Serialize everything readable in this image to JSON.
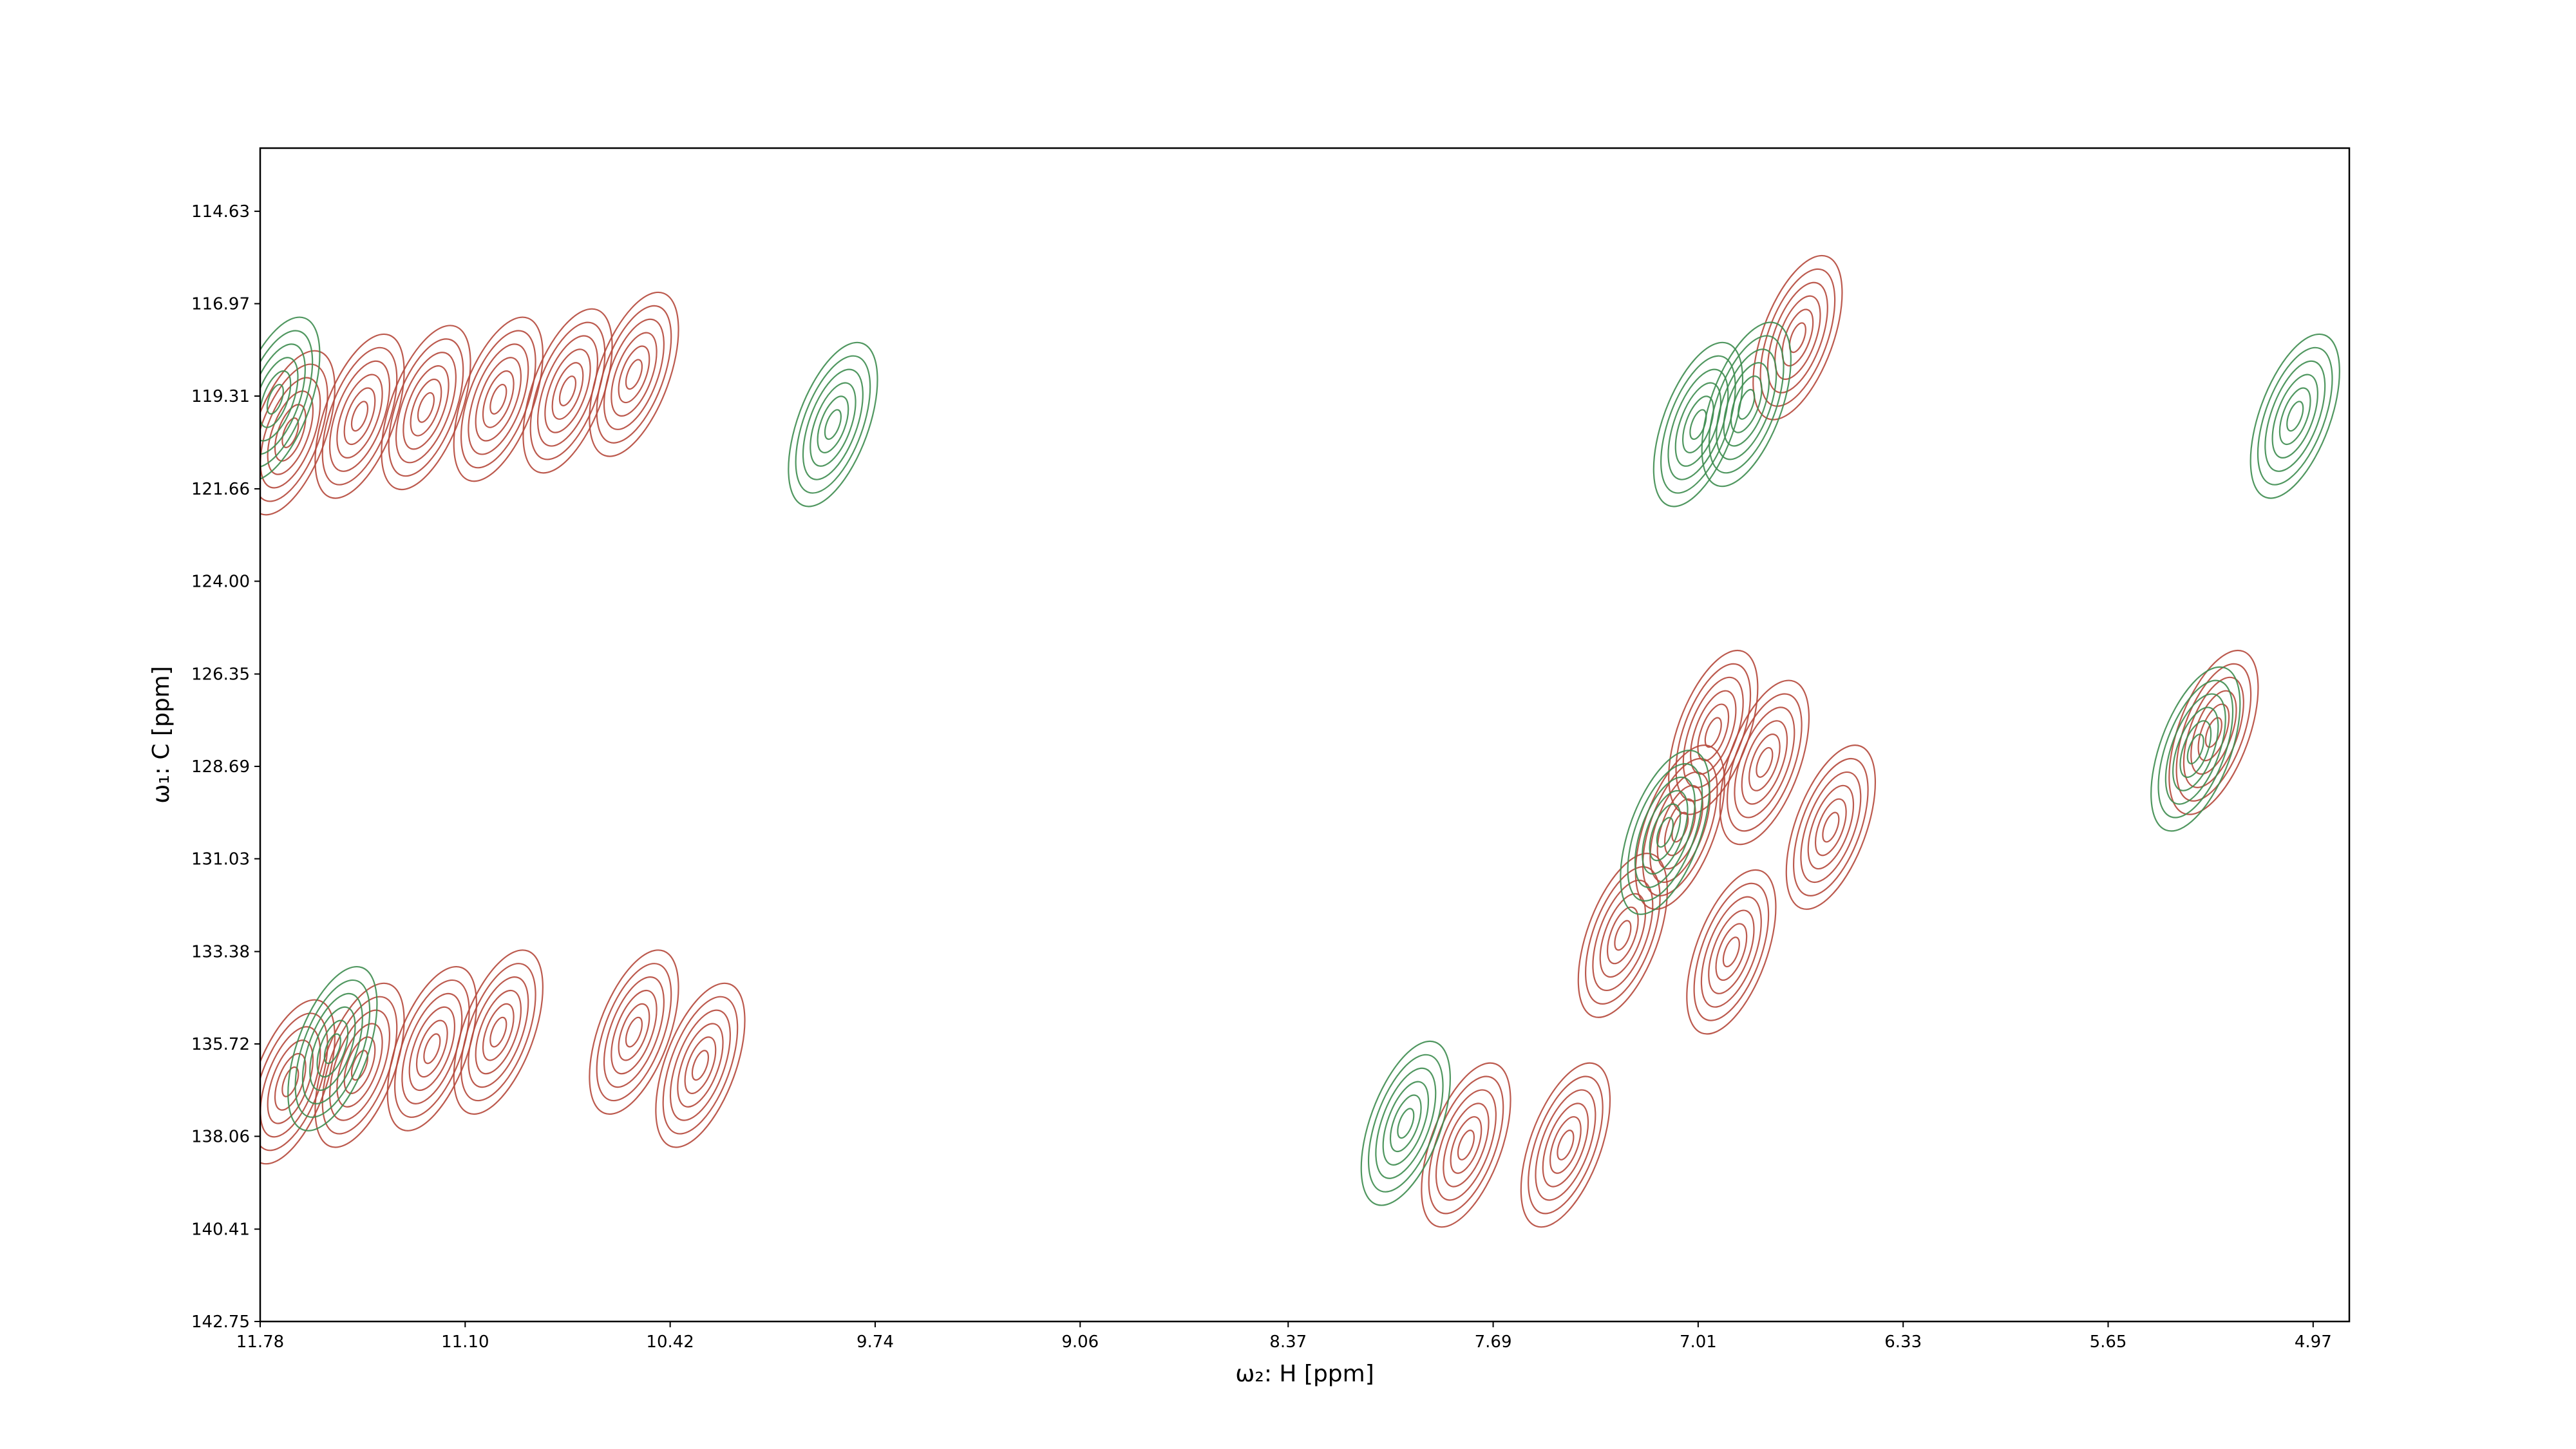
{
  "chart_data": {
    "type": "contour",
    "xlabel": "ω₂: H [ppm]",
    "ylabel": "ω₁: C [ppm]",
    "xlim": [
      11.78,
      4.85
    ],
    "ylim": [
      142.75,
      113.03
    ],
    "xticks": [
      11.78,
      {
        "value": 11.1,
        "label": "11.10"
      },
      10.42,
      9.74,
      9.06,
      8.37,
      7.69,
      7.01,
      6.33,
      5.65,
      4.97
    ],
    "yticks": [
      114.63,
      116.97,
      119.31,
      121.66,
      {
        "value": 124,
        "label": "124.00"
      },
      126.35,
      128.69,
      131.03,
      133.38,
      135.72,
      138.06,
      140.41,
      142.75
    ],
    "series": [
      {
        "color": "#b5483b",
        "x": [
          11.68,
          11.45,
          11.23,
          10.99,
          10.76,
          10.54,
          11.68,
          11.45,
          11.21,
          10.99,
          10.54,
          10.32,
          6.68,
          6.96,
          6.79,
          7.07,
          6.57,
          7.26,
          6.9,
          7.78,
          7.45,
          5.3
        ],
        "y": [
          120.24,
          119.82,
          119.6,
          119.39,
          119.18,
          118.76,
          136.68,
          136.26,
          135.84,
          135.42,
          135.42,
          136.26,
          117.83,
          127.83,
          128.59,
          130.23,
          130.23,
          132.97,
          133.39,
          138.28,
          138.28,
          127.83
        ]
      },
      {
        "color": "#3d8c4f",
        "x": [
          11.73,
          11.54,
          7.01,
          6.85,
          7.98,
          5.03,
          5.36,
          7.12,
          9.88
        ],
        "y": [
          119.39,
          135.84,
          120.03,
          119.52,
          137.73,
          119.82,
          128.25,
          130.36,
          120.03
        ]
      }
    ]
  }
}
